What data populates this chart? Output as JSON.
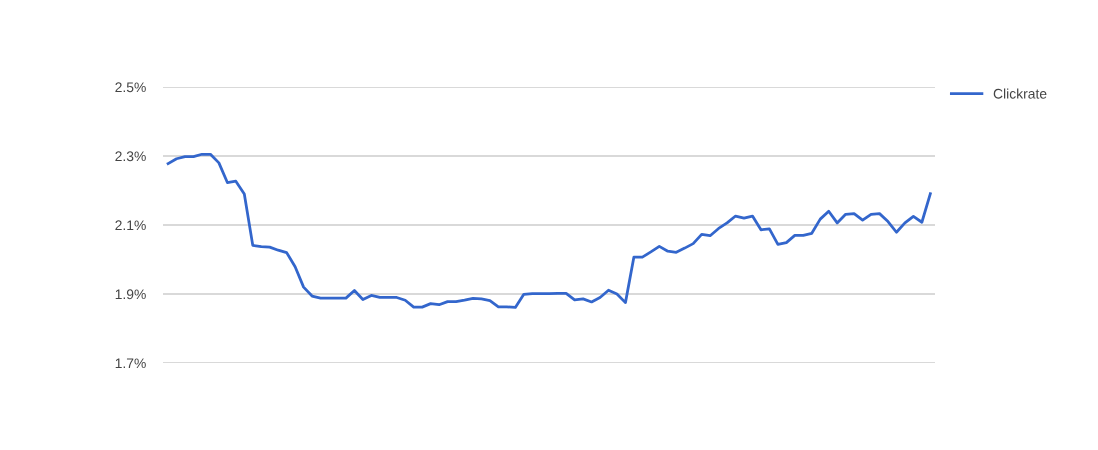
{
  "chart_data": {
    "type": "line",
    "categories": [
      null,
      null,
      null,
      null,
      null,
      null,
      null,
      null,
      null,
      null,
      null,
      null,
      null,
      null,
      null,
      null,
      null,
      null,
      null,
      null,
      null,
      null,
      null,
      null,
      null,
      null,
      null,
      null,
      null,
      null,
      null,
      null,
      null,
      null,
      null,
      null,
      null,
      null,
      null,
      null,
      null,
      null,
      null,
      null,
      null,
      null,
      null,
      null,
      null,
      null,
      null,
      null,
      null,
      null,
      null,
      null,
      null,
      null,
      null,
      null,
      null,
      null,
      null,
      null,
      null,
      null,
      null,
      null,
      null,
      null,
      null,
      null,
      null,
      null,
      null,
      null,
      null,
      null,
      null,
      null,
      null,
      null,
      null,
      null,
      null,
      null,
      null,
      null,
      null,
      null,
      null
    ],
    "series": [
      {
        "name": "Clickrate",
        "color": "#3366cc",
        "values": [
          2.278,
          2.292,
          2.298,
          2.298,
          2.305,
          2.305,
          2.28,
          2.223,
          2.227,
          2.19,
          2.041,
          2.037,
          2.036,
          2.027,
          2.02,
          1.979,
          1.92,
          1.894,
          1.888,
          1.888,
          1.888,
          1.888,
          1.91,
          1.884,
          1.896,
          1.89,
          1.89,
          1.89,
          1.882,
          1.862,
          1.862,
          1.872,
          1.869,
          1.878,
          1.878,
          1.882,
          1.887,
          1.886,
          1.881,
          1.863,
          1.863,
          1.861,
          1.899,
          1.901,
          1.901,
          1.901,
          1.902,
          1.902,
          1.883,
          1.886,
          1.877,
          1.89,
          1.911,
          1.9,
          1.875,
          2.007,
          2.007,
          2.022,
          2.038,
          2.024,
          2.021,
          2.033,
          2.046,
          2.073,
          2.069,
          2.09,
          2.106,
          2.126,
          2.12,
          2.126,
          2.086,
          2.089,
          2.044,
          2.049,
          2.07,
          2.07,
          2.076,
          2.117,
          2.14,
          2.106,
          2.131,
          2.133,
          2.114,
          2.131,
          2.133,
          2.11,
          2.079,
          2.106,
          2.125,
          2.108,
          2.191
        ]
      }
    ],
    "ylim": [
      1.7,
      2.5
    ],
    "yticks": [
      {
        "value": 1.7,
        "label": "1.7%"
      },
      {
        "value": 1.9,
        "label": "1.9%"
      },
      {
        "value": 2.1,
        "label": "2.1%"
      },
      {
        "value": 2.3,
        "label": "2.3%"
      },
      {
        "value": 2.5,
        "label": "2.5%"
      }
    ],
    "grid": "y",
    "legend": "top right",
    "tick_labels": "y",
    "marker": "none",
    "line_style": "solid"
  }
}
